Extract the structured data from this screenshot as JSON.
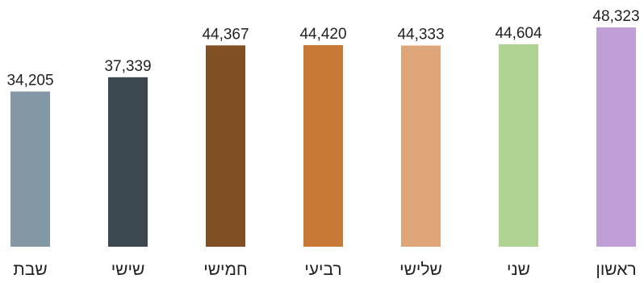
{
  "chart_data": {
    "type": "bar",
    "title": "",
    "xlabel": "",
    "ylabel": "",
    "ylim": [
      0,
      48323
    ],
    "grid": false,
    "categories": [
      "שבת",
      "שישי",
      "חמישי",
      "רביעי",
      "שלישי",
      "שני",
      "ראשון"
    ],
    "values": [
      34205,
      37339,
      44367,
      44420,
      44333,
      44604,
      48323
    ],
    "value_labels": [
      "34,205",
      "37,339",
      "44,367",
      "44,420",
      "44,333",
      "44,604",
      "48,323"
    ],
    "colors": [
      "#8497a4",
      "#3b4850",
      "#804f24",
      "#c87935",
      "#dea678",
      "#aed392",
      "#bf9fd6"
    ]
  }
}
